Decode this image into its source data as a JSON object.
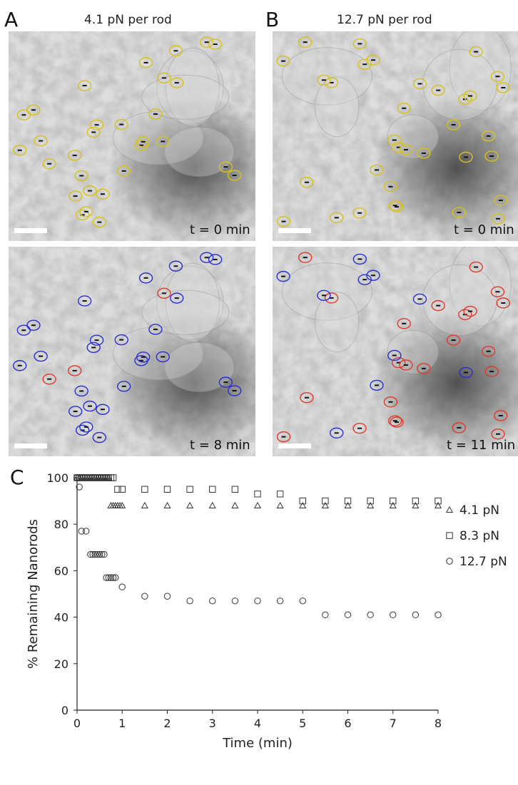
{
  "panels": {
    "A": {
      "letter": "A",
      "title": "4.1 pN per rod",
      "time_top": "t = 0 min",
      "time_bottom": "t = 8 min"
    },
    "B": {
      "letter": "B",
      "title": "12.7 pN per rod",
      "time_top": "t = 0 min",
      "time_bottom": "t = 11 min"
    },
    "C": {
      "letter": "C"
    }
  },
  "colors": {
    "marker_initial": "#d6c21a",
    "marker_remaining": "#2a2fcf",
    "marker_detached": "#e03a2a",
    "scale_bar": "#ffffff"
  },
  "chart_data": {
    "type": "scatter",
    "xlabel": "Time (min)",
    "ylabel": "% Remaining Nanorods",
    "xlim": [
      0,
      8
    ],
    "ylim": [
      0,
      100
    ],
    "xticks": [
      0,
      1,
      2,
      3,
      4,
      5,
      6,
      7,
      8
    ],
    "yticks": [
      0,
      20,
      40,
      60,
      80,
      100
    ],
    "grid": false,
    "legend_position": "right",
    "series": [
      {
        "name": "4.1 pN",
        "marker": "triangle",
        "x": [
          0,
          0.05,
          0.1,
          0.15,
          0.2,
          0.25,
          0.3,
          0.35,
          0.4,
          0.45,
          0.5,
          0.55,
          0.6,
          0.65,
          0.7,
          0.75,
          0.8,
          0.85,
          0.9,
          0.95,
          1,
          1.5,
          2,
          2.5,
          3,
          3.5,
          4,
          4.5,
          5,
          5.5,
          6,
          6.5,
          7,
          7.5,
          8
        ],
        "y": [
          100,
          100,
          100,
          100,
          100,
          100,
          100,
          100,
          100,
          100,
          100,
          100,
          100,
          100,
          100,
          88,
          88,
          88,
          88,
          88,
          88,
          88,
          88,
          88,
          88,
          88,
          88,
          88,
          88,
          88,
          88,
          88,
          88,
          88,
          88
        ]
      },
      {
        "name": "8.3 pN",
        "marker": "square",
        "x": [
          0,
          0.05,
          0.1,
          0.15,
          0.2,
          0.25,
          0.3,
          0.35,
          0.4,
          0.45,
          0.5,
          0.55,
          0.6,
          0.65,
          0.7,
          0.75,
          0.8,
          0.9,
          1,
          1.5,
          2,
          2.5,
          3,
          3.5,
          4,
          4.5,
          5,
          5.5,
          6,
          6.5,
          7,
          7.5,
          8
        ],
        "y": [
          100,
          100,
          100,
          100,
          100,
          100,
          100,
          100,
          100,
          100,
          100,
          100,
          100,
          100,
          100,
          100,
          100,
          95,
          95,
          95,
          95,
          95,
          95,
          95,
          93,
          93,
          90,
          90,
          90,
          90,
          90,
          90,
          90
        ]
      },
      {
        "name": "12.7 pN",
        "marker": "circle",
        "x": [
          0,
          0.05,
          0.1,
          0.2,
          0.3,
          0.35,
          0.4,
          0.45,
          0.5,
          0.55,
          0.6,
          0.65,
          0.7,
          0.75,
          0.8,
          0.85,
          1,
          1.5,
          2,
          2.5,
          3,
          3.5,
          4,
          4.5,
          5,
          5.5,
          6,
          6.5,
          7,
          7.5,
          8
        ],
        "y": [
          100,
          96,
          77,
          77,
          67,
          67,
          67,
          67,
          67,
          67,
          67,
          57,
          57,
          57,
          57,
          57,
          53,
          49,
          49,
          47,
          47,
          47,
          47,
          47,
          47,
          41,
          41,
          41,
          41,
          41,
          41
        ]
      }
    ]
  }
}
